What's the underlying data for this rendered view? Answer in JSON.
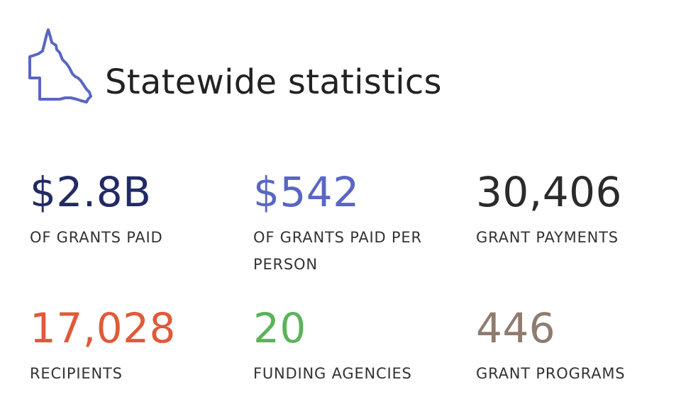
{
  "header": {
    "title": "Statewide statistics",
    "icon": "queensland-outline-icon"
  },
  "stats": [
    {
      "value": "$2.8B",
      "label": "OF GRANTS PAID",
      "color": "#222a66"
    },
    {
      "value": "$542",
      "label": "OF GRANTS PAID PER PERSON",
      "color": "#5a66c4"
    },
    {
      "value": "30,406",
      "label": "GRANT PAYMENTS",
      "color": "#2b2b2b"
    },
    {
      "value": "17,028",
      "label": "RECIPIENTS",
      "color": "#e05a3a"
    },
    {
      "value": "20",
      "label": "FUNDING AGENCIES",
      "color": "#5cb35a"
    },
    {
      "value": "446",
      "label": "GRANT PROGRAMS",
      "color": "#8f7b6f"
    }
  ],
  "colors": {
    "icon_stroke": "#5a66c4",
    "title": "#222222",
    "label": "#333333"
  }
}
